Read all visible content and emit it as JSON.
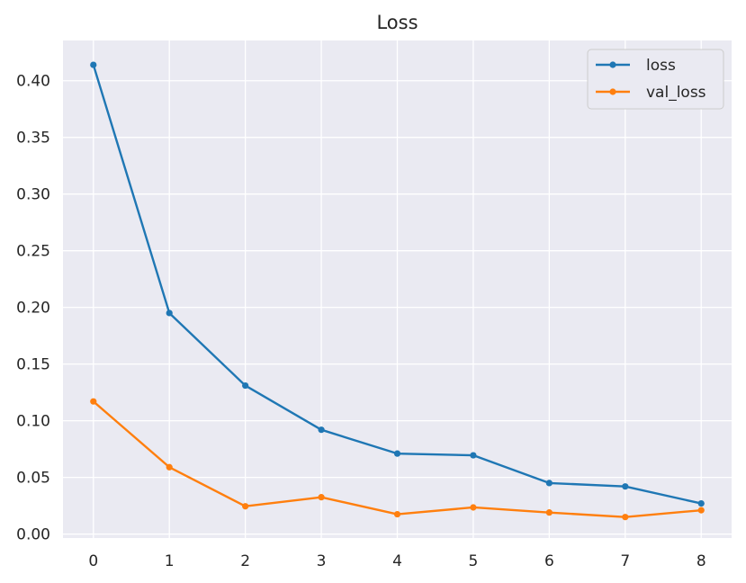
{
  "chart_data": {
    "type": "line",
    "title": "Loss",
    "xlabel": "",
    "ylabel": "",
    "x": [
      0,
      1,
      2,
      3,
      4,
      5,
      6,
      7,
      8
    ],
    "xticks": [
      "0",
      "1",
      "2",
      "3",
      "4",
      "5",
      "6",
      "7",
      "8"
    ],
    "yticks": [
      "0.00",
      "0.05",
      "0.10",
      "0.15",
      "0.20",
      "0.25",
      "0.30",
      "0.35",
      "0.40"
    ],
    "xlim": [
      -0.4,
      8.4
    ],
    "ylim": [
      -0.0035,
      0.4355
    ],
    "grid": true,
    "legend_position": "top-right",
    "series": [
      {
        "name": "loss",
        "color": "#1f77b4",
        "values": [
          0.414,
          0.195,
          0.131,
          0.092,
          0.071,
          0.0695,
          0.045,
          0.042,
          0.027
        ]
      },
      {
        "name": "val_loss",
        "color": "#ff7f0e",
        "values": [
          0.117,
          0.059,
          0.0245,
          0.0325,
          0.0175,
          0.0235,
          0.019,
          0.015,
          0.021
        ]
      }
    ]
  }
}
